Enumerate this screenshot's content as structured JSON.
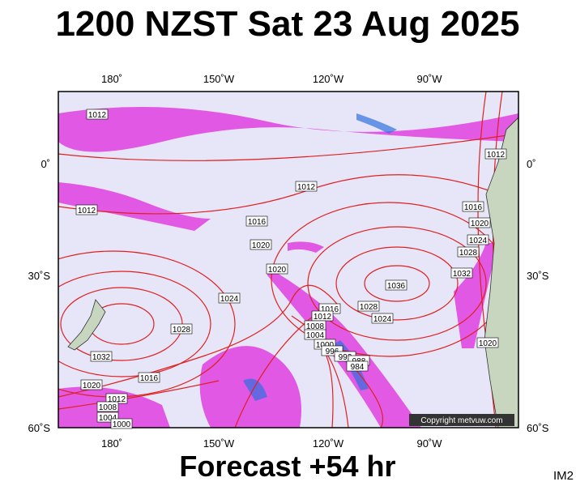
{
  "header": {
    "title": "1200 NZST Sat 23 Aug 2025"
  },
  "axes": {
    "top": [
      "180˚",
      "150˚W",
      "120˚W",
      "90˚W"
    ],
    "bottom": [
      "180˚",
      "150˚W",
      "120˚W",
      "90˚W"
    ],
    "left": [
      "0˚",
      "30˚S",
      "60˚S"
    ],
    "right": [
      "0˚",
      "30˚S",
      "60˚S"
    ]
  },
  "isobars": [
    "1012",
    "1012",
    "1012",
    "1012",
    "1016",
    "1016",
    "1020",
    "1020",
    "1024",
    "1028",
    "1020",
    "1032",
    "1036",
    "1024",
    "1016",
    "1028",
    "1024",
    "1012",
    "1008",
    "1004",
    "1000",
    "996",
    "992",
    "988",
    "984",
    "1028",
    "1020",
    "1032",
    "1016",
    "1020",
    "1012",
    "1008",
    "1004",
    "1000"
  ],
  "copyright": "Copyright metvuw.com",
  "footer": {
    "forecast": "Forecast +54 hr",
    "id": "IM2"
  }
}
